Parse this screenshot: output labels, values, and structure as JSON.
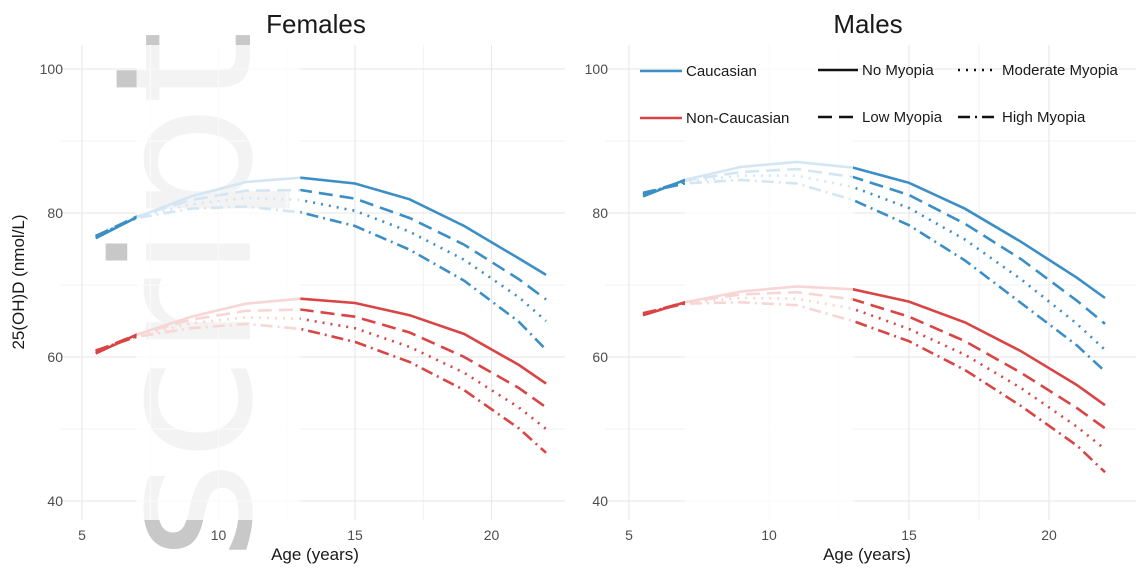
{
  "chart_data": {
    "type": "line",
    "y_label": "25(OH)D (nmol/L)",
    "colors": {
      "Caucasian": "#3b8fc6",
      "Non-Caucasian": "#d94444"
    },
    "grid": true,
    "legend_placement": "top-right of Males panel",
    "panels": [
      {
        "title": "Females",
        "xlabel": "Age (years)",
        "xlim": [
          5,
          22
        ],
        "ylim": [
          40,
          100
        ],
        "x_ticks": [
          5,
          10,
          15,
          20
        ],
        "y_ticks": [
          40,
          60,
          80,
          100
        ],
        "series": [
          {
            "ethnicity": "Caucasian",
            "myopia": "No Myopia",
            "x": [
              5.5,
              7,
              9,
              11,
              13,
              15,
              17,
              19,
              21,
              22
            ],
            "y": [
              76.5,
              79.4,
              82.3,
              84.3,
              84.9,
              84.1,
              81.9,
              78.2,
              73.7,
              71.4
            ]
          },
          {
            "ethnicity": "Caucasian",
            "myopia": "Low Myopia",
            "x": [
              5.5,
              7,
              9,
              11,
              13,
              15,
              17,
              19,
              21,
              22
            ],
            "y": [
              76.8,
              79.5,
              81.8,
              83.1,
              83.2,
              82.0,
              79.3,
              75.6,
              70.8,
              68.0
            ]
          },
          {
            "ethnicity": "Caucasian",
            "myopia": "Moderate Myopia",
            "x": [
              5.5,
              7,
              9,
              11,
              13,
              15,
              17,
              19,
              21,
              22
            ],
            "y": [
              76.7,
              79.4,
              81.2,
              82.1,
              81.8,
              80.3,
              77.4,
              73.5,
              68.3,
              65.0
            ]
          },
          {
            "ethnicity": "Caucasian",
            "myopia": "High Myopia",
            "x": [
              5.5,
              7,
              9,
              11,
              13,
              15,
              17,
              19,
              21,
              22
            ],
            "y": [
              76.8,
              79.3,
              80.6,
              80.9,
              80.1,
              78.2,
              74.9,
              70.6,
              64.9,
              61.0
            ]
          },
          {
            "ethnicity": "Non-Caucasian",
            "myopia": "No Myopia",
            "x": [
              5.5,
              7,
              9,
              11,
              13,
              15,
              17,
              19,
              21,
              22
            ],
            "y": [
              60.5,
              63.1,
              65.6,
              67.4,
              68.1,
              67.5,
              65.8,
              63.2,
              58.9,
              56.3
            ]
          },
          {
            "ethnicity": "Non-Caucasian",
            "myopia": "Low Myopia",
            "x": [
              5.5,
              7,
              9,
              11,
              13,
              15,
              17,
              19,
              21,
              22
            ],
            "y": [
              60.8,
              63.1,
              65.2,
              66.4,
              66.6,
              65.6,
              63.4,
              60.0,
              55.7,
              53.0
            ]
          },
          {
            "ethnicity": "Non-Caucasian",
            "myopia": "Moderate Myopia",
            "x": [
              5.5,
              7,
              9,
              11,
              13,
              15,
              17,
              19,
              21,
              22
            ],
            "y": [
              60.7,
              62.9,
              64.7,
              65.5,
              65.3,
              64.0,
              61.4,
              57.8,
              53.0,
              50.0
            ]
          },
          {
            "ethnicity": "Non-Caucasian",
            "myopia": "High Myopia",
            "x": [
              5.5,
              7,
              9,
              11,
              13,
              15,
              17,
              19,
              21,
              22
            ],
            "y": [
              60.9,
              62.8,
              64.0,
              64.6,
              63.9,
              62.1,
              59.3,
              55.4,
              50.1,
              46.7
            ]
          }
        ]
      },
      {
        "title": "Males",
        "xlabel": "Age (years)",
        "xlim": [
          5,
          22
        ],
        "ylim": [
          40,
          100
        ],
        "x_ticks": [
          5,
          10,
          15,
          20
        ],
        "y_ticks": [
          40,
          60,
          80,
          100
        ],
        "series": [
          {
            "ethnicity": "Caucasian",
            "myopia": "No Myopia",
            "x": [
              5.5,
              7,
              9,
              11,
              13,
              15,
              17,
              19,
              21,
              22
            ],
            "y": [
              82.3,
              84.6,
              86.4,
              87.1,
              86.3,
              84.2,
              80.6,
              76.0,
              71.0,
              68.2
            ]
          },
          {
            "ethnicity": "Caucasian",
            "myopia": "Low Myopia",
            "x": [
              5.5,
              7,
              9,
              11,
              13,
              15,
              17,
              19,
              21,
              22
            ],
            "y": [
              82.6,
              84.5,
              85.7,
              86.1,
              85.0,
              82.5,
              78.5,
              73.6,
              67.8,
              64.6
            ]
          },
          {
            "ethnicity": "Caucasian",
            "myopia": "Moderate Myopia",
            "x": [
              5.5,
              7,
              9,
              11,
              13,
              15,
              17,
              19,
              21,
              22
            ],
            "y": [
              82.6,
              84.3,
              85.2,
              85.2,
              83.6,
              80.7,
              76.3,
              70.8,
              64.6,
              61.0
            ]
          },
          {
            "ethnicity": "Caucasian",
            "myopia": "High Myopia",
            "x": [
              5.5,
              7,
              9,
              11,
              13,
              15,
              17,
              19,
              21,
              22
            ],
            "y": [
              82.8,
              84.1,
              84.6,
              84.1,
              81.8,
              78.3,
              73.4,
              67.5,
              61.6,
              58.0
            ]
          },
          {
            "ethnicity": "Non-Caucasian",
            "myopia": "No Myopia",
            "x": [
              5.5,
              7,
              9,
              11,
              13,
              15,
              17,
              19,
              21,
              22
            ],
            "y": [
              65.8,
              67.6,
              69.1,
              69.8,
              69.4,
              67.7,
              64.8,
              60.8,
              56.1,
              53.3
            ]
          },
          {
            "ethnicity": "Non-Caucasian",
            "myopia": "Low Myopia",
            "x": [
              5.5,
              7,
              9,
              11,
              13,
              15,
              17,
              19,
              21,
              22
            ],
            "y": [
              66.0,
              67.6,
              68.7,
              69.0,
              68.0,
              65.6,
              62.2,
              57.8,
              52.9,
              50.1
            ]
          },
          {
            "ethnicity": "Non-Caucasian",
            "myopia": "Moderate Myopia",
            "x": [
              5.5,
              7,
              9,
              11,
              13,
              15,
              17,
              19,
              21,
              22
            ],
            "y": [
              65.9,
              67.5,
              68.2,
              68.1,
              66.7,
              63.9,
              60.3,
              55.7,
              50.3,
              47.2
            ]
          },
          {
            "ethnicity": "Non-Caucasian",
            "myopia": "High Myopia",
            "x": [
              5.5,
              7,
              9,
              11,
              13,
              15,
              17,
              19,
              21,
              22
            ],
            "y": [
              66.1,
              67.4,
              67.6,
              67.2,
              65.0,
              62.2,
              58.2,
              53.2,
              47.7,
              44.0
            ]
          }
        ]
      }
    ],
    "legend": {
      "ethnicity": [
        {
          "label": "Caucasian",
          "key": "Caucasian"
        },
        {
          "label": "Non-Caucasian",
          "key": "Non-Caucasian"
        }
      ],
      "myopia": [
        {
          "label": "No Myopia",
          "key": "No Myopia"
        },
        {
          "label": "Moderate Myopia",
          "key": "Moderate Myopia"
        },
        {
          "label": "Low Myopia",
          "key": "Low Myopia"
        },
        {
          "label": "High Myopia",
          "key": "High Myopia"
        }
      ]
    }
  },
  "watermark_text": "script"
}
